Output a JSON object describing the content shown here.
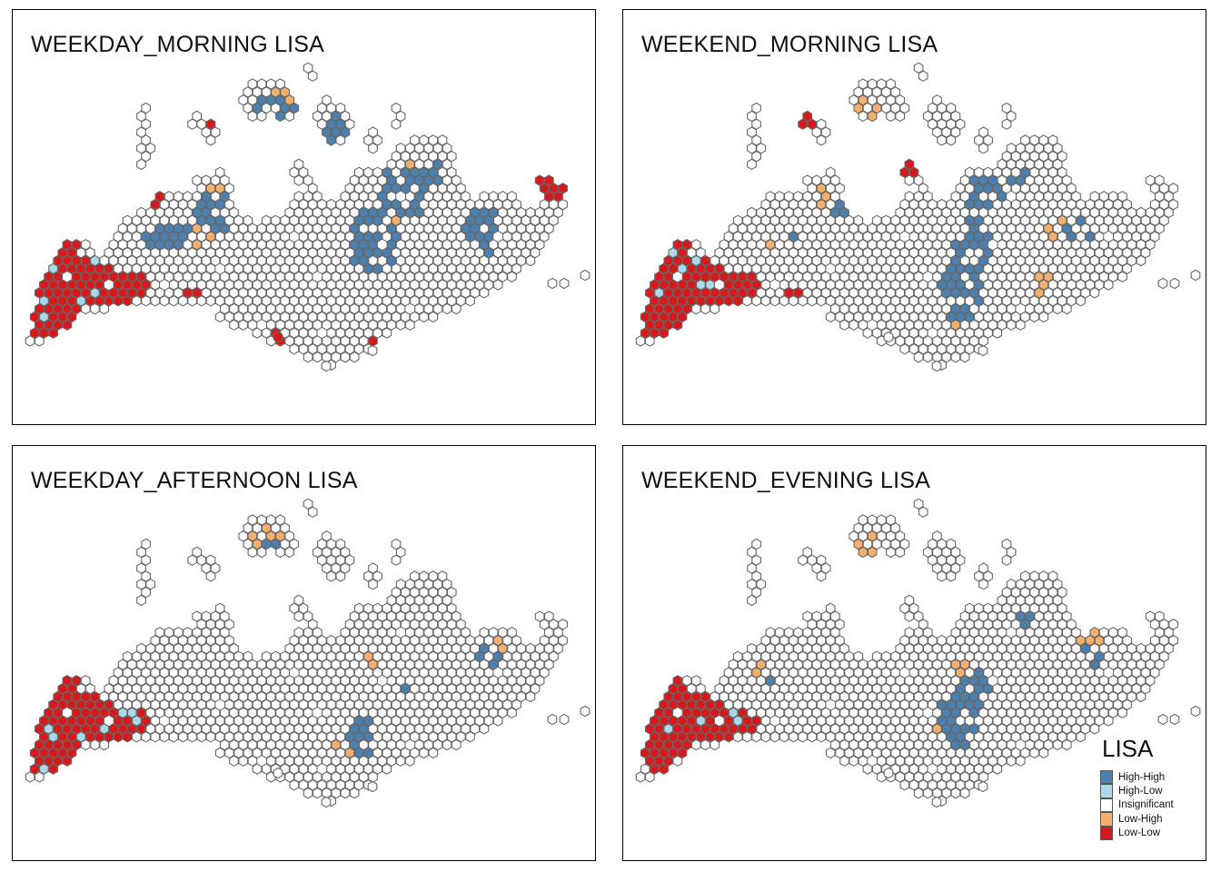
{
  "legend": {
    "title": "LISA",
    "items": [
      {
        "label": "High-High",
        "color": "#4a7fae"
      },
      {
        "label": "High-Low",
        "color": "#abd9e9"
      },
      {
        "label": "Insignificant",
        "color": "#ffffff"
      },
      {
        "label": "Low-High",
        "color": "#f4b06c"
      },
      {
        "label": "Low-Low",
        "color": "#d7191c"
      }
    ]
  },
  "hex_outline_color": "#666666",
  "panels": [
    {
      "title": "WEEKDAY_MORNING LISA"
    },
    {
      "title": "WEEKEND_MORNING LISA"
    },
    {
      "title": "WEEKDAY_AFTERNOON LISA"
    },
    {
      "title": "WEEKEND_EVENING LISA"
    }
  ]
}
